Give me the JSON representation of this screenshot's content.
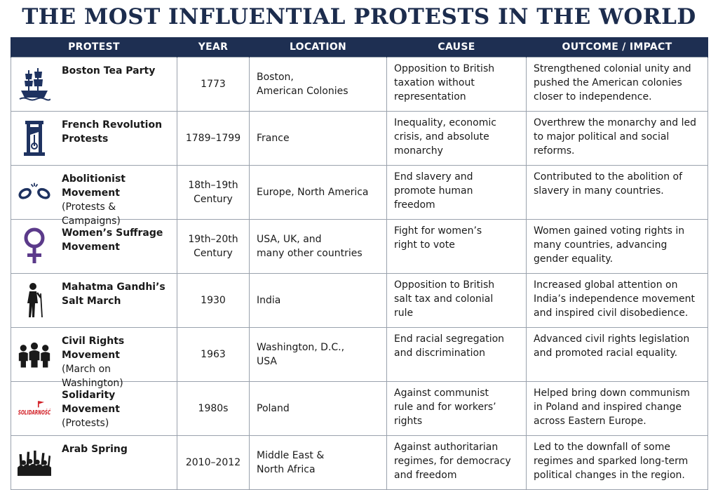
{
  "title": "THE MOST INFLUENTIAL PROTESTS IN THE WORLD",
  "headers": {
    "protest": "PROTEST",
    "year": "YEAR",
    "location": "LOCATION",
    "cause": "CAUSE",
    "outcome": "OUTCOME / IMPACT"
  },
  "colors": {
    "title": "#1c2c4d",
    "header_bg": "#1e2f52",
    "icon_navy": "#1e3260",
    "icon_purple": "#5b3a8a",
    "solidarity_red": "#d21f26"
  },
  "rows": [
    {
      "icon": "ship-icon",
      "name": "Boston Tea Party",
      "sub": "",
      "year": "1773",
      "location": [
        "Boston,",
        "American Colonies"
      ],
      "cause": [
        "Opposition to British",
        "taxation without",
        "representation"
      ],
      "outcome": [
        "Strengthened colonial unity and",
        "pushed the American colonies",
        "closer to independence."
      ]
    },
    {
      "icon": "guillotine-icon",
      "name": "French Revolution",
      "sub": "Protests",
      "year": "1789–1799",
      "location": [
        "France"
      ],
      "cause": [
        "Inequality, economic",
        "crisis, and absolute",
        "monarchy"
      ],
      "outcome": [
        "Overthrew the monarchy and led",
        "to major political and social",
        "reforms."
      ]
    },
    {
      "icon": "broken-chain-icon",
      "name": "Abolitionist Movement",
      "sub": "(Protests & Campaigns)",
      "year": [
        "18th–19th",
        "Century"
      ],
      "location": [
        "Europe, North America"
      ],
      "cause": [
        "End slavery and",
        "promote human",
        "freedom"
      ],
      "outcome": [
        "Contributed to the abolition of",
        "slavery in many countries."
      ]
    },
    {
      "icon": "venus-symbol-icon",
      "name": "Women’s Suffrage",
      "sub": "Movement",
      "year": [
        "19th–20th",
        "Century"
      ],
      "location": [
        "USA, UK, and",
        "many other countries"
      ],
      "cause": [
        "Fight for women’s",
        "right to vote"
      ],
      "outcome": [
        "Women gained voting rights in",
        "many countries, advancing",
        "gender equality."
      ]
    },
    {
      "icon": "walking-figure-icon",
      "name": "Mahatma Gandhi’s",
      "sub": "Salt March",
      "year": "1930",
      "location": [
        "India"
      ],
      "cause": [
        "Opposition to British",
        "salt tax and colonial",
        "rule"
      ],
      "outcome": [
        "Increased global attention on",
        "India’s independence movement",
        "and inspired civil disobedience."
      ]
    },
    {
      "icon": "crowd-icon",
      "name": "Civil Rights Movement",
      "sub": "(March on Washington)",
      "year": "1963",
      "location": [
        "Washington, D.C.,",
        "USA"
      ],
      "cause": [
        "End racial segregation",
        "and discrimination"
      ],
      "outcome": [
        "Advanced civil rights legislation",
        "and promoted racial equality."
      ]
    },
    {
      "icon": "solidarnosc-logo-icon",
      "logo_text": "SOLIDARNOŚĆ",
      "name": "Solidarity Movement",
      "sub": "(Protests)",
      "year": "1980s",
      "location": [
        "Poland"
      ],
      "cause": [
        "Against communist",
        "rule and for workers’",
        "rights"
      ],
      "outcome": [
        "Helped bring down communism",
        "in Poland and inspired change",
        "across Eastern Europe."
      ]
    },
    {
      "icon": "raised-fists-crowd-icon",
      "name": "Arab Spring",
      "sub": "",
      "year": "2010–2012",
      "location": [
        "Middle East &",
        "North Africa"
      ],
      "cause": [
        "Against authoritarian",
        "regimes, for democracy",
        "and freedom"
      ],
      "outcome": [
        "Led to the downfall of some",
        "regimes and sparked long-term",
        "political changes in the region."
      ]
    }
  ]
}
